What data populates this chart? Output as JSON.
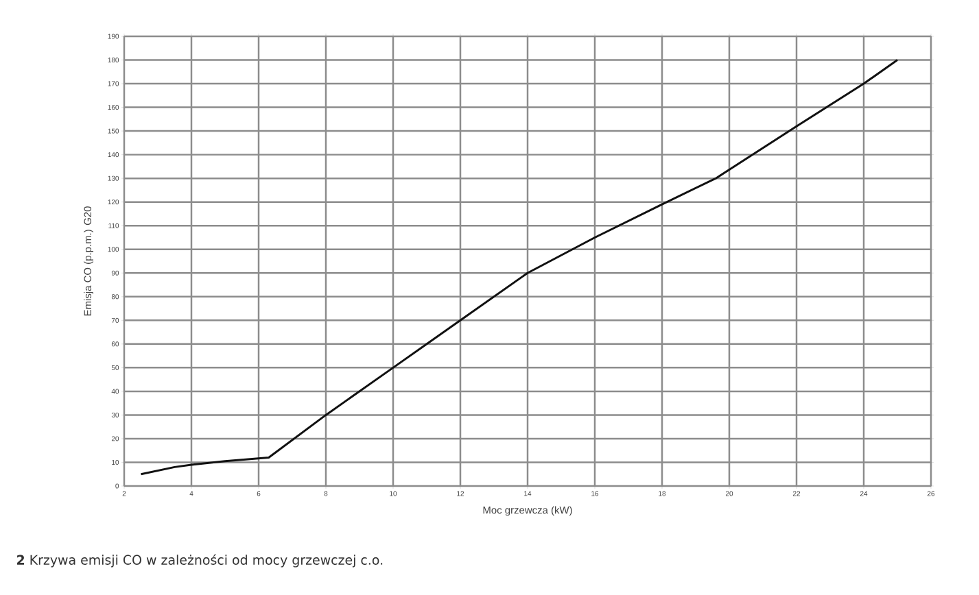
{
  "chart_data": {
    "type": "line",
    "xlabel": "Moc grzewcza (kW)",
    "ylabel": "Emisja CO (p.p.m.) G20",
    "annotations": [
      "**2** Krzywa emisji CO w zależności od mocy grzewczej c.o."
    ],
    "x": [
      2.5,
      3.5,
      4,
      5,
      6.3,
      8,
      10,
      12,
      13,
      14,
      16,
      18,
      19.6,
      22,
      24,
      25
    ],
    "series": [
      {
        "color": "#111111",
        "values": [
          5,
          8,
          9,
          10.5,
          12,
          30,
          50,
          70,
          80,
          90,
          105,
          119,
          130,
          152,
          170,
          180
        ]
      }
    ],
    "xlim": [
      2,
      26
    ],
    "xticks": [
      2,
      4,
      6,
      8,
      10,
      12,
      14,
      16,
      18,
      20,
      22,
      24,
      26
    ],
    "ylim": [
      0,
      190
    ],
    "yticks": [
      0,
      10,
      20,
      30,
      40,
      50,
      60,
      70,
      80,
      90,
      100,
      110,
      120,
      130,
      140,
      150,
      160,
      170,
      180,
      190
    ],
    "grid": true,
    "marker": "none",
    "line_style": "solid"
  }
}
